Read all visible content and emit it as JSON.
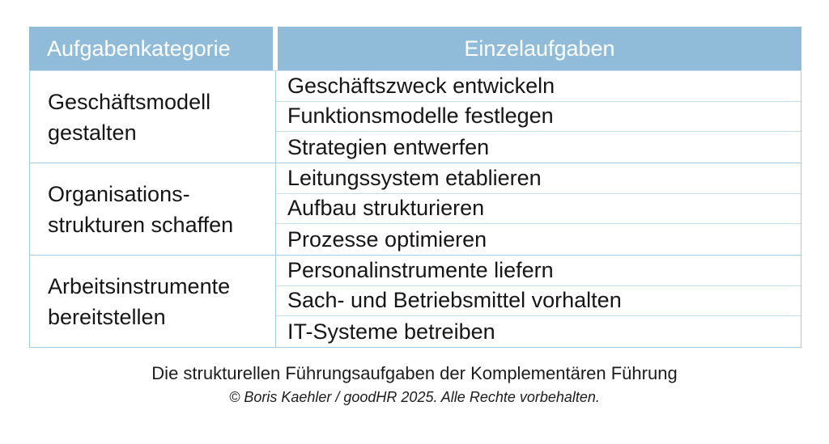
{
  "table": {
    "headers": {
      "category": "Aufgabenkategorie",
      "tasks": "Einzelaufgaben"
    },
    "groups": [
      {
        "category": "Geschäftsmodell\ngestalten",
        "tasks": [
          "Geschäftszweck entwickeln",
          "Funktionsmodelle festlegen",
          "Strategien entwerfen"
        ]
      },
      {
        "category": "Organisations-\nstrukturen schaffen",
        "tasks": [
          "Leitungssystem etablieren",
          "Aufbau strukturieren",
          "Prozesse optimieren"
        ]
      },
      {
        "category": "Arbeitsinstrumente\nbereitstellen",
        "tasks": [
          "Personalinstrumente liefern",
          "Sach- und Betriebsmittel vorhalten",
          "IT-Systeme betreiben"
        ]
      }
    ]
  },
  "caption": "Die strukturellen Führungsaufgaben der Komplementären Führung",
  "copyright": "© Boris Kaehler / goodHR 2025. Alle Rechte vorbehalten.",
  "colors": {
    "header_bg": "#90bcd9",
    "header_text": "#ffffff",
    "grid_line_strong": "#a6cbe2",
    "grid_line_light": "#c3ddef",
    "body_text": "#161616"
  },
  "chart_data": {
    "type": "table",
    "columns": [
      "Aufgabenkategorie",
      "Einzelaufgaben"
    ],
    "rows": [
      [
        "Geschäftsmodell gestalten",
        "Geschäftszweck entwickeln"
      ],
      [
        "Geschäftsmodell gestalten",
        "Funktionsmodelle festlegen"
      ],
      [
        "Geschäftsmodell gestalten",
        "Strategien entwerfen"
      ],
      [
        "Organisations-strukturen schaffen",
        "Leitungssystem etablieren"
      ],
      [
        "Organisations-strukturen schaffen",
        "Aufbau strukturieren"
      ],
      [
        "Organisations-strukturen schaffen",
        "Prozesse optimieren"
      ],
      [
        "Arbeitsinstrumente bereitstellen",
        "Personalinstrumente liefern"
      ],
      [
        "Arbeitsinstrumente bereitstellen",
        "Sach- und Betriebsmittel vorhalten"
      ],
      [
        "Arbeitsinstrumente bereitstellen",
        "IT-Systeme betreiben"
      ]
    ],
    "title": "Die strukturellen Führungsaufgaben der Komplementären Führung",
    "legend_position": "none",
    "grid": true
  }
}
